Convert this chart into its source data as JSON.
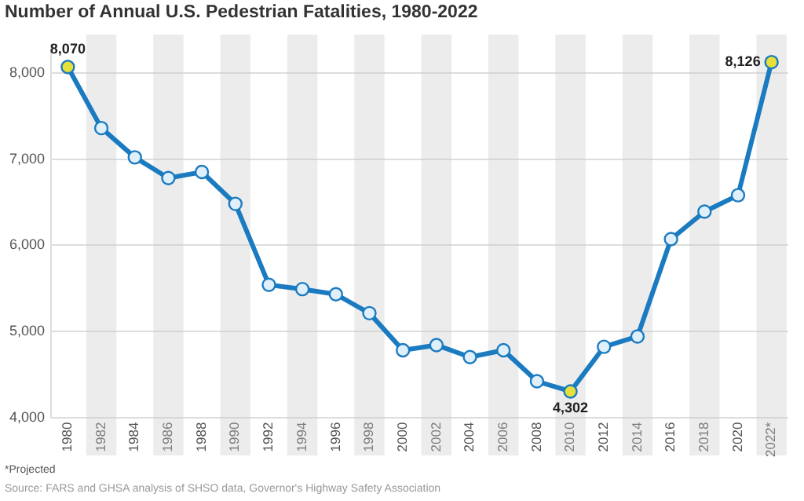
{
  "chart_data": {
    "type": "line",
    "title": "Number of Annual U.S. Pedestrian Fatalities, 1980-2022",
    "categories": [
      "1980",
      "1982",
      "1984",
      "1986",
      "1988",
      "1990",
      "1992",
      "1994",
      "1996",
      "1998",
      "2000",
      "2002",
      "2004",
      "2006",
      "2008",
      "2010",
      "2012",
      "2014",
      "2016",
      "2018",
      "2020",
      "2022*"
    ],
    "series": [
      {
        "color": "#1b7bc0",
        "values": [
          8070,
          7360,
          7020,
          6780,
          6850,
          6480,
          5540,
          5490,
          5430,
          5210,
          4780,
          4840,
          4700,
          4780,
          4420,
          4302,
          4820,
          4940,
          6070,
          6390,
          6580,
          8126
        ],
        "colors": [
          "#e6df3c",
          "#dff0fb",
          "#dff0fb",
          "#dff0fb",
          "#dff0fb",
          "#dff0fb",
          "#dff0fb",
          "#dff0fb",
          "#dff0fb",
          "#dff0fb",
          "#dff0fb",
          "#dff0fb",
          "#dff0fb",
          "#dff0fb",
          "#dff0fb",
          "#e6df3c",
          "#dff0fb",
          "#dff0fb",
          "#dff0fb",
          "#dff0fb",
          "#dff0fb",
          "#e6df3c"
        ],
        "value_labels": [
          "8,070",
          null,
          null,
          null,
          null,
          null,
          null,
          null,
          null,
          null,
          null,
          null,
          null,
          null,
          null,
          "4,302",
          null,
          null,
          null,
          null,
          null,
          "8,126"
        ]
      }
    ],
    "ylim": [
      4000,
      8300
    ],
    "yticks": [
      {
        "value": 4000,
        "label": "4,000"
      },
      {
        "value": 5000,
        "label": "5,000"
      },
      {
        "value": 6000,
        "label": "6,000"
      },
      {
        "value": 7000,
        "label": "7,000"
      },
      {
        "value": 8000,
        "label": "8,000"
      }
    ],
    "grid": "y",
    "marker": "circle",
    "line_style": "solid",
    "annotations": [
      "*Projected",
      "Source: FARS and GHSA analysis of SHSO data, Governor's Highway Safety Association"
    ]
  }
}
